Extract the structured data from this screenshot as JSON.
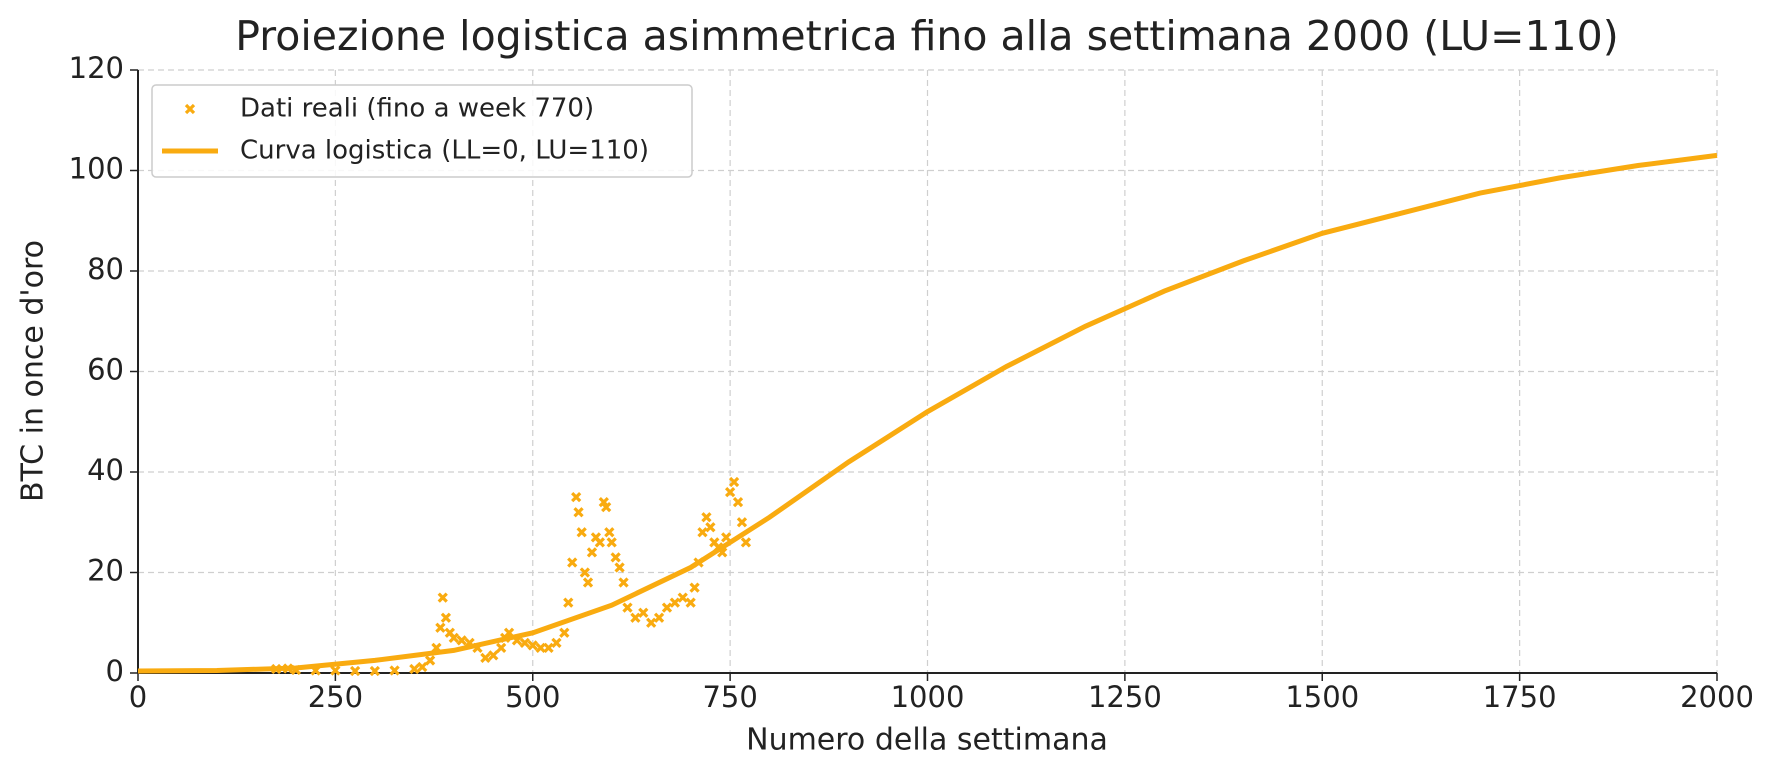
{
  "chart_data": {
    "type": "line",
    "title": "Proiezione logistica asimmetrica fino alla settimana 2000 (LU=110)",
    "xlabel": "Numero della settimana",
    "ylabel": "BTC in once d'oro",
    "xlim": [
      0,
      2000
    ],
    "ylim": [
      0,
      120
    ],
    "xticks": [
      0,
      250,
      500,
      750,
      1000,
      1250,
      1500,
      1750,
      2000
    ],
    "yticks": [
      0,
      20,
      40,
      60,
      80,
      100,
      120
    ],
    "grid": true,
    "legend": "upper left",
    "series": [
      {
        "name": "Dati reali (fino a week 770)",
        "type": "scatter",
        "color": "#f9ab10",
        "x": [
          175,
          190,
          200,
          225,
          250,
          275,
          300,
          325,
          350,
          360,
          370,
          378,
          383,
          386,
          390,
          395,
          400,
          410,
          420,
          430,
          440,
          450,
          460,
          465,
          470,
          480,
          490,
          500,
          510,
          520,
          530,
          540,
          545,
          550,
          555,
          558,
          562,
          566,
          570,
          575,
          580,
          585,
          590,
          593,
          597,
          600,
          605,
          610,
          615,
          620,
          630,
          640,
          650,
          660,
          670,
          680,
          690,
          700,
          705,
          710,
          715,
          720,
          725,
          730,
          735,
          740,
          745,
          750,
          755,
          760,
          765,
          770
        ],
        "y": [
          0.8,
          0.9,
          0.6,
          0.5,
          0.5,
          0.4,
          0.4,
          0.5,
          0.8,
          1.2,
          2.5,
          5,
          9,
          15,
          11,
          8,
          7,
          6.5,
          6,
          5,
          3,
          3.5,
          5,
          7,
          8,
          6.5,
          6,
          5.5,
          5,
          5,
          6,
          8,
          14,
          22,
          35,
          32,
          28,
          20,
          18,
          24,
          27,
          26,
          34,
          33,
          28,
          26,
          23,
          21,
          18,
          13,
          11,
          12,
          10,
          11,
          13,
          14,
          15,
          14,
          17,
          22,
          28,
          31,
          29,
          26,
          25,
          24,
          27,
          36,
          38,
          34,
          30,
          26
        ]
      },
      {
        "name": "Curva logistica (LL=0, LU=110)",
        "type": "line",
        "color": "#f9ab10",
        "x": [
          0,
          100,
          200,
          300,
          400,
          500,
          600,
          700,
          800,
          900,
          1000,
          1100,
          1200,
          1300,
          1400,
          1500,
          1600,
          1700,
          1800,
          1900,
          2000
        ],
        "y": [
          0.4,
          0.5,
          1,
          2.5,
          4.5,
          8,
          13.5,
          21,
          31,
          42,
          52,
          61,
          69,
          76,
          82,
          87.5,
          91.5,
          95.5,
          98.5,
          101,
          103
        ]
      }
    ]
  }
}
